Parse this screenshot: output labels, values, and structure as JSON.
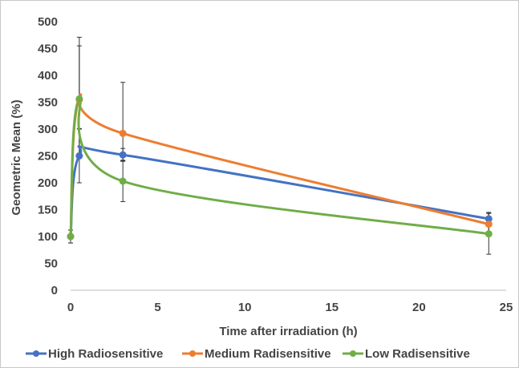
{
  "chart_data": {
    "type": "line",
    "title": "",
    "xlabel": "Time after irradiation (h)",
    "ylabel": "Geometric Mean (%)",
    "xlim": [
      0,
      25
    ],
    "ylim": [
      0,
      500
    ],
    "x_ticks": [
      0,
      5,
      10,
      15,
      20,
      25
    ],
    "y_ticks": [
      0,
      50,
      100,
      150,
      200,
      250,
      300,
      350,
      400,
      450,
      500
    ],
    "x_tick_labels": [
      "0",
      "5",
      "10",
      "15",
      "20",
      "25"
    ],
    "y_tick_labels": [
      "0",
      "50",
      "100",
      "150",
      "200",
      "250",
      "300",
      "350",
      "400",
      "450",
      "500"
    ],
    "grid": false,
    "smooth": true,
    "legend_position": "bottom",
    "series": [
      {
        "name": "High Radiosensitive",
        "color": "#4472C4",
        "x": [
          0,
          0.5,
          3,
          24
        ],
        "y": [
          100,
          250,
          252,
          133
        ],
        "err_low": [
          12,
          50,
          12,
          12
        ],
        "err_high": [
          12,
          50,
          12,
          12
        ]
      },
      {
        "name": "Medium Radisensitive",
        "color": "#ED7D31",
        "x": [
          0,
          0.5,
          3,
          24
        ],
        "y": [
          100,
          355,
          292,
          123
        ],
        "err_low": [
          12,
          100,
          50,
          20
        ],
        "err_high": [
          12,
          100,
          95,
          20
        ]
      },
      {
        "name": "Low Radisensitive",
        "color": "#70AD47",
        "x": [
          0,
          0.5,
          3,
          24
        ],
        "y": [
          100,
          356,
          203,
          105
        ],
        "err_low": [
          12,
          55,
          38,
          38
        ],
        "err_high": [
          12,
          115,
          38,
          38
        ]
      }
    ]
  }
}
